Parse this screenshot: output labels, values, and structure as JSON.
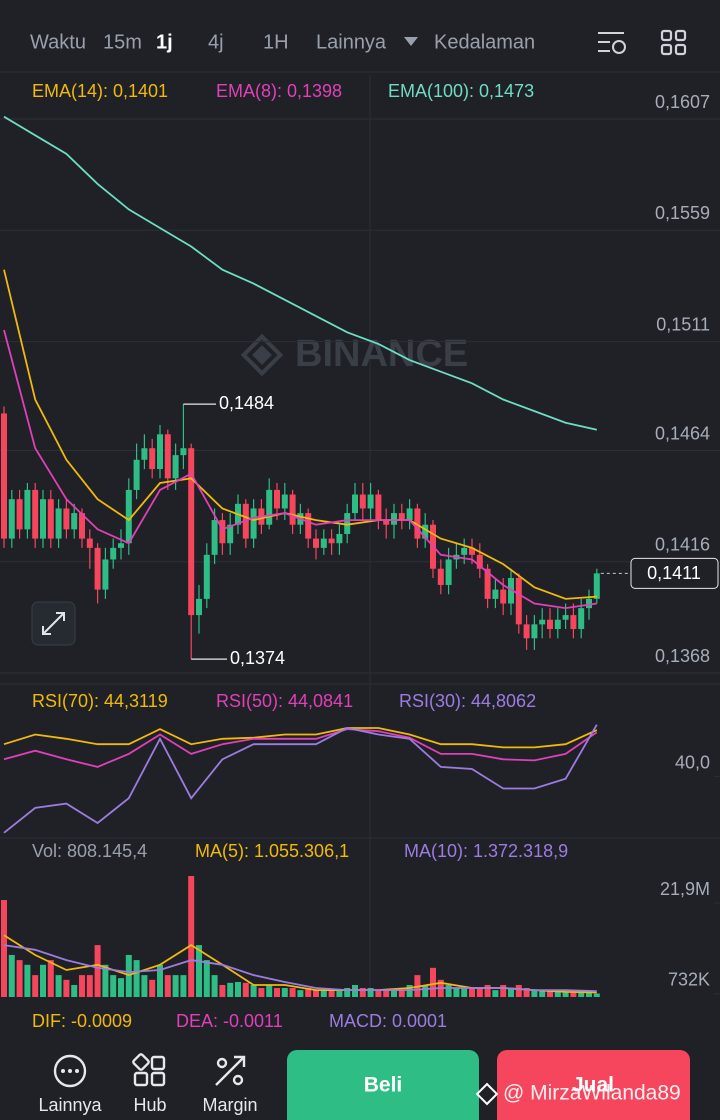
{
  "tabs": {
    "label": "Waktu",
    "items": [
      "15m",
      "1j",
      "4j",
      "1H",
      "Lainnya",
      "Kedalaman"
    ],
    "active": 1
  },
  "watermark": "BINANCE",
  "chart_data": [
    {
      "type": "candlestick",
      "up_color": "#2ebd85",
      "down_color": "#f6465d",
      "ylim": [
        0.1365,
        0.1626
      ],
      "yticks": [
        {
          "value": 0.1607,
          "label": "0,1607"
        },
        {
          "value": 0.1559,
          "label": "0,1559"
        },
        {
          "value": 0.1511,
          "label": "0,1511"
        },
        {
          "value": 0.1464,
          "label": "0,1464"
        },
        {
          "value": 0.1416,
          "label": "0,1416"
        },
        {
          "value": 0.1368,
          "label": "0,1368"
        }
      ],
      "grid": true,
      "open": [
        0.148,
        0.1426,
        0.1443,
        0.143,
        0.1447,
        0.1426,
        0.1443,
        0.1426,
        0.1439,
        0.143,
        0.1437,
        0.1426,
        0.1422,
        0.1404,
        0.1417,
        0.1422,
        0.1424,
        0.1447,
        0.146,
        0.1465,
        0.1456,
        0.1471,
        0.1452,
        0.1462,
        0.1465,
        0.1393,
        0.14,
        0.1419,
        0.1434,
        0.1424,
        0.1432,
        0.1441,
        0.1426,
        0.1439,
        0.1432,
        0.1447,
        0.1439,
        0.1445,
        0.1432,
        0.1437,
        0.1426,
        0.1422,
        0.1426,
        0.1424,
        0.1428,
        0.1437,
        0.1445,
        0.1439,
        0.1445,
        0.1434,
        0.1432,
        0.1437,
        0.1434,
        0.1439,
        0.1426,
        0.1432,
        0.1413,
        0.1406,
        0.1417,
        0.1419,
        0.1422,
        0.1419,
        0.1413,
        0.14,
        0.1404,
        0.1398,
        0.1409,
        0.1389,
        0.1383,
        0.1389,
        0.1391,
        0.1387,
        0.1391,
        0.1393,
        0.1387,
        0.1396,
        0.14
      ],
      "high": [
        0.1483,
        0.1447,
        0.1447,
        0.145,
        0.145,
        0.1447,
        0.1447,
        0.1443,
        0.1443,
        0.1441,
        0.1439,
        0.143,
        0.1424,
        0.1422,
        0.1426,
        0.143,
        0.1452,
        0.1467,
        0.1471,
        0.1469,
        0.1475,
        0.1473,
        0.1467,
        0.1484,
        0.1467,
        0.1406,
        0.1424,
        0.1439,
        0.1437,
        0.1437,
        0.1445,
        0.1443,
        0.1443,
        0.1443,
        0.1452,
        0.145,
        0.145,
        0.1447,
        0.1441,
        0.1439,
        0.143,
        0.143,
        0.143,
        0.1432,
        0.1441,
        0.145,
        0.145,
        0.145,
        0.1447,
        0.1439,
        0.1441,
        0.1441,
        0.1443,
        0.1441,
        0.1437,
        0.1434,
        0.1417,
        0.1422,
        0.1424,
        0.1426,
        0.1426,
        0.1424,
        0.1415,
        0.1409,
        0.1409,
        0.1413,
        0.1411,
        0.1393,
        0.1393,
        0.1396,
        0.1396,
        0.1396,
        0.1398,
        0.1398,
        0.14,
        0.1404,
        0.1413
      ],
      "low": [
        0.1422,
        0.1422,
        0.1426,
        0.1426,
        0.1422,
        0.1422,
        0.1422,
        0.1422,
        0.1426,
        0.1426,
        0.1422,
        0.1413,
        0.1398,
        0.14,
        0.1413,
        0.1417,
        0.1419,
        0.1443,
        0.1456,
        0.1452,
        0.1452,
        0.1447,
        0.1447,
        0.1456,
        0.1374,
        0.1385,
        0.1396,
        0.1415,
        0.1419,
        0.1419,
        0.1428,
        0.1422,
        0.1422,
        0.1428,
        0.143,
        0.1434,
        0.1434,
        0.1428,
        0.1428,
        0.1422,
        0.1417,
        0.1419,
        0.1419,
        0.1419,
        0.1424,
        0.1434,
        0.1434,
        0.1434,
        0.143,
        0.1426,
        0.1426,
        0.143,
        0.143,
        0.1422,
        0.1422,
        0.1409,
        0.1402,
        0.1402,
        0.1413,
        0.1415,
        0.1415,
        0.1409,
        0.1396,
        0.1396,
        0.1393,
        0.1393,
        0.1385,
        0.1378,
        0.1378,
        0.1383,
        0.1383,
        0.1383,
        0.1387,
        0.1383,
        0.1383,
        0.1391,
        0.1398
      ],
      "close": [
        0.1426,
        0.1443,
        0.143,
        0.1447,
        0.1426,
        0.1443,
        0.1426,
        0.1439,
        0.143,
        0.1437,
        0.1426,
        0.1422,
        0.1404,
        0.1417,
        0.1422,
        0.1424,
        0.1447,
        0.146,
        0.1465,
        0.1456,
        0.1471,
        0.1452,
        0.1462,
        0.1465,
        0.1393,
        0.14,
        0.1419,
        0.1434,
        0.1424,
        0.1432,
        0.1441,
        0.1426,
        0.1439,
        0.1432,
        0.1447,
        0.1439,
        0.1445,
        0.1432,
        0.1437,
        0.1426,
        0.1422,
        0.1426,
        0.1424,
        0.1428,
        0.1437,
        0.1445,
        0.1439,
        0.1445,
        0.1434,
        0.1432,
        0.1437,
        0.1434,
        0.1439,
        0.1426,
        0.1432,
        0.1413,
        0.1406,
        0.1417,
        0.1419,
        0.1422,
        0.1419,
        0.1413,
        0.14,
        0.1404,
        0.1398,
        0.1409,
        0.1389,
        0.1383,
        0.1389,
        0.1391,
        0.1387,
        0.1391,
        0.1393,
        0.1387,
        0.1396,
        0.14,
        0.1411
      ],
      "series": [
        {
          "name": "EMA(14): 0,1401",
          "color": "#f0b90b",
          "x": [
            0,
            4,
            8,
            12,
            16,
            20,
            24,
            28,
            32,
            36,
            40,
            44,
            48,
            52,
            56,
            60,
            64,
            68,
            72,
            76
          ],
          "values": [
            0.1542,
            0.1486,
            0.146,
            0.1443,
            0.1434,
            0.145,
            0.1452,
            0.1439,
            0.1434,
            0.1437,
            0.1434,
            0.1432,
            0.1434,
            0.1434,
            0.1426,
            0.1422,
            0.1415,
            0.1405,
            0.14,
            0.1401
          ]
        },
        {
          "name": "EMA(8): 0,1398",
          "color": "#e040b8",
          "x": [
            0,
            4,
            8,
            12,
            16,
            20,
            24,
            28,
            32,
            36,
            40,
            44,
            48,
            52,
            56,
            60,
            64,
            68,
            72,
            76
          ],
          "values": [
            0.1516,
            0.1465,
            0.1443,
            0.143,
            0.1424,
            0.1447,
            0.1454,
            0.143,
            0.1435,
            0.1437,
            0.1432,
            0.1434,
            0.1434,
            0.1434,
            0.1419,
            0.1417,
            0.1406,
            0.1398,
            0.1396,
            0.1398
          ]
        },
        {
          "name": "EMA(100): 0,1473",
          "color": "#6fdcc4",
          "x": [
            0,
            4,
            8,
            12,
            16,
            20,
            24,
            28,
            32,
            36,
            40,
            44,
            48,
            52,
            56,
            60,
            64,
            68,
            72,
            76
          ],
          "values": [
            0.1608,
            0.16,
            0.1592,
            0.1579,
            0.1568,
            0.156,
            0.1552,
            0.1542,
            0.1536,
            0.1529,
            0.1522,
            0.1515,
            0.151,
            0.1503,
            0.1498,
            0.1493,
            0.1486,
            0.1481,
            0.1476,
            0.1473
          ]
        }
      ],
      "high_label": {
        "value": 0.1484,
        "label": "0,1484"
      },
      "low_label": {
        "value": 0.1374,
        "label": "0,1374"
      },
      "last_label": {
        "value": 0.1411,
        "label": "0,1411"
      }
    },
    {
      "type": "line",
      "ylim": [
        34.5,
        48.2
      ],
      "yticks": [
        {
          "value": 40,
          "label": "40,0"
        }
      ],
      "series": [
        {
          "name": "RSI(70): 44,3119",
          "color": "#f0b90b",
          "x": [
            0,
            4,
            8,
            12,
            16,
            20,
            24,
            28,
            32,
            36,
            40,
            44,
            48,
            52,
            56,
            60,
            64,
            68,
            72,
            76
          ],
          "values": [
            43.0,
            43.9,
            43.5,
            43.0,
            43.0,
            44.4,
            43.0,
            43.5,
            43.6,
            43.9,
            43.9,
            44.5,
            44.5,
            43.9,
            43.0,
            43.0,
            42.7,
            42.7,
            43.0,
            44.3
          ]
        },
        {
          "name": "RSI(50): 44,0841",
          "color": "#e040b8",
          "x": [
            0,
            4,
            8,
            12,
            16,
            20,
            24,
            28,
            32,
            36,
            40,
            44,
            48,
            52,
            56,
            60,
            64,
            68,
            72,
            76
          ],
          "values": [
            41.6,
            42.4,
            41.6,
            40.9,
            42.1,
            43.9,
            42.1,
            43.0,
            43.5,
            43.5,
            43.5,
            44.4,
            44.2,
            43.6,
            42.1,
            42.1,
            41.6,
            41.5,
            42.1,
            44.1
          ]
        },
        {
          "name": "RSI(30): 44,8062",
          "color": "#9c7ce0",
          "x": [
            0,
            4,
            8,
            12,
            16,
            20,
            24,
            28,
            32,
            36,
            40,
            44,
            48,
            52,
            56,
            60,
            64,
            68,
            72,
            76
          ],
          "values": [
            34.8,
            37.1,
            37.5,
            35.7,
            38.0,
            43.5,
            38.0,
            41.6,
            43.0,
            43.0,
            43.0,
            44.5,
            43.9,
            43.5,
            40.9,
            40.7,
            38.9,
            38.9,
            39.8,
            44.8
          ]
        }
      ]
    },
    {
      "type": "bar",
      "ylim": [
        0,
        29600000
      ],
      "yticks": [
        {
          "value": 21900000,
          "label": "21,9M"
        },
        {
          "value": 732000,
          "label": "732K"
        }
      ],
      "series": [
        {
          "name": "Vol: 808.145,4",
          "color": "#9aa0ab",
          "type": "bar",
          "values": [
            22600000,
            9800000,
            8600000,
            7500000,
            5100000,
            7500000,
            8600000,
            5100000,
            4000000,
            2800000,
            5100000,
            5100000,
            12100000,
            7500000,
            5100000,
            4400000,
            9800000,
            8600000,
            5100000,
            4000000,
            7500000,
            5100000,
            5100000,
            5100000,
            28200000,
            12100000,
            8600000,
            5100000,
            2800000,
            3300000,
            3500000,
            3300000,
            2800000,
            2100000,
            2800000,
            2100000,
            2100000,
            2100000,
            1600000,
            2100000,
            1600000,
            1600000,
            1600000,
            1600000,
            2100000,
            2800000,
            2100000,
            2100000,
            1600000,
            1600000,
            1600000,
            1600000,
            2800000,
            5100000,
            2800000,
            6800000,
            4000000,
            2800000,
            2100000,
            2100000,
            2100000,
            2100000,
            2800000,
            1600000,
            2800000,
            2100000,
            2800000,
            2100000,
            1600000,
            1600000,
            1600000,
            1200000,
            1200000,
            1600000,
            1200000,
            1200000,
            808145.4
          ]
        },
        {
          "name": "MA(5): 1.055.306,1",
          "color": "#f0b90b",
          "type": "line",
          "x": [
            0,
            4,
            8,
            12,
            16,
            20,
            24,
            28,
            32,
            36,
            40,
            44,
            48,
            52,
            56,
            60,
            64,
            68,
            72,
            76
          ],
          "values": [
            14400000,
            9800000,
            6300000,
            7500000,
            5100000,
            7500000,
            12100000,
            7500000,
            2800000,
            2800000,
            1600000,
            1600000,
            1600000,
            2100000,
            3300000,
            2100000,
            2100000,
            1600000,
            1200000,
            1055306.1
          ]
        },
        {
          "name": "MA(10): 1.372.318,9",
          "color": "#9c7ce0",
          "type": "line",
          "x": [
            0,
            4,
            8,
            12,
            16,
            20,
            24,
            28,
            32,
            36,
            40,
            44,
            48,
            52,
            56,
            60,
            64,
            68,
            72,
            76
          ],
          "values": [
            12100000,
            11000000,
            8600000,
            6800000,
            5800000,
            6300000,
            8600000,
            7500000,
            5100000,
            3500000,
            2100000,
            1600000,
            1600000,
            1600000,
            2100000,
            2100000,
            2100000,
            1600000,
            1600000,
            1372318.9
          ]
        }
      ]
    }
  ],
  "macd_legend": [
    {
      "text": "DIF: -0.0009",
      "color": "#f0b90b"
    },
    {
      "text": "DEA: -0.0011",
      "color": "#e040b8"
    },
    {
      "text": "MACD: 0.0001",
      "color": "#9c7ce0"
    }
  ],
  "nav": [
    "Lainnya",
    "Hub",
    "Margin"
  ],
  "buttons": {
    "buy": "Beli",
    "sell": "Jual"
  },
  "user_watermark": "@ MirzaWilanda89"
}
